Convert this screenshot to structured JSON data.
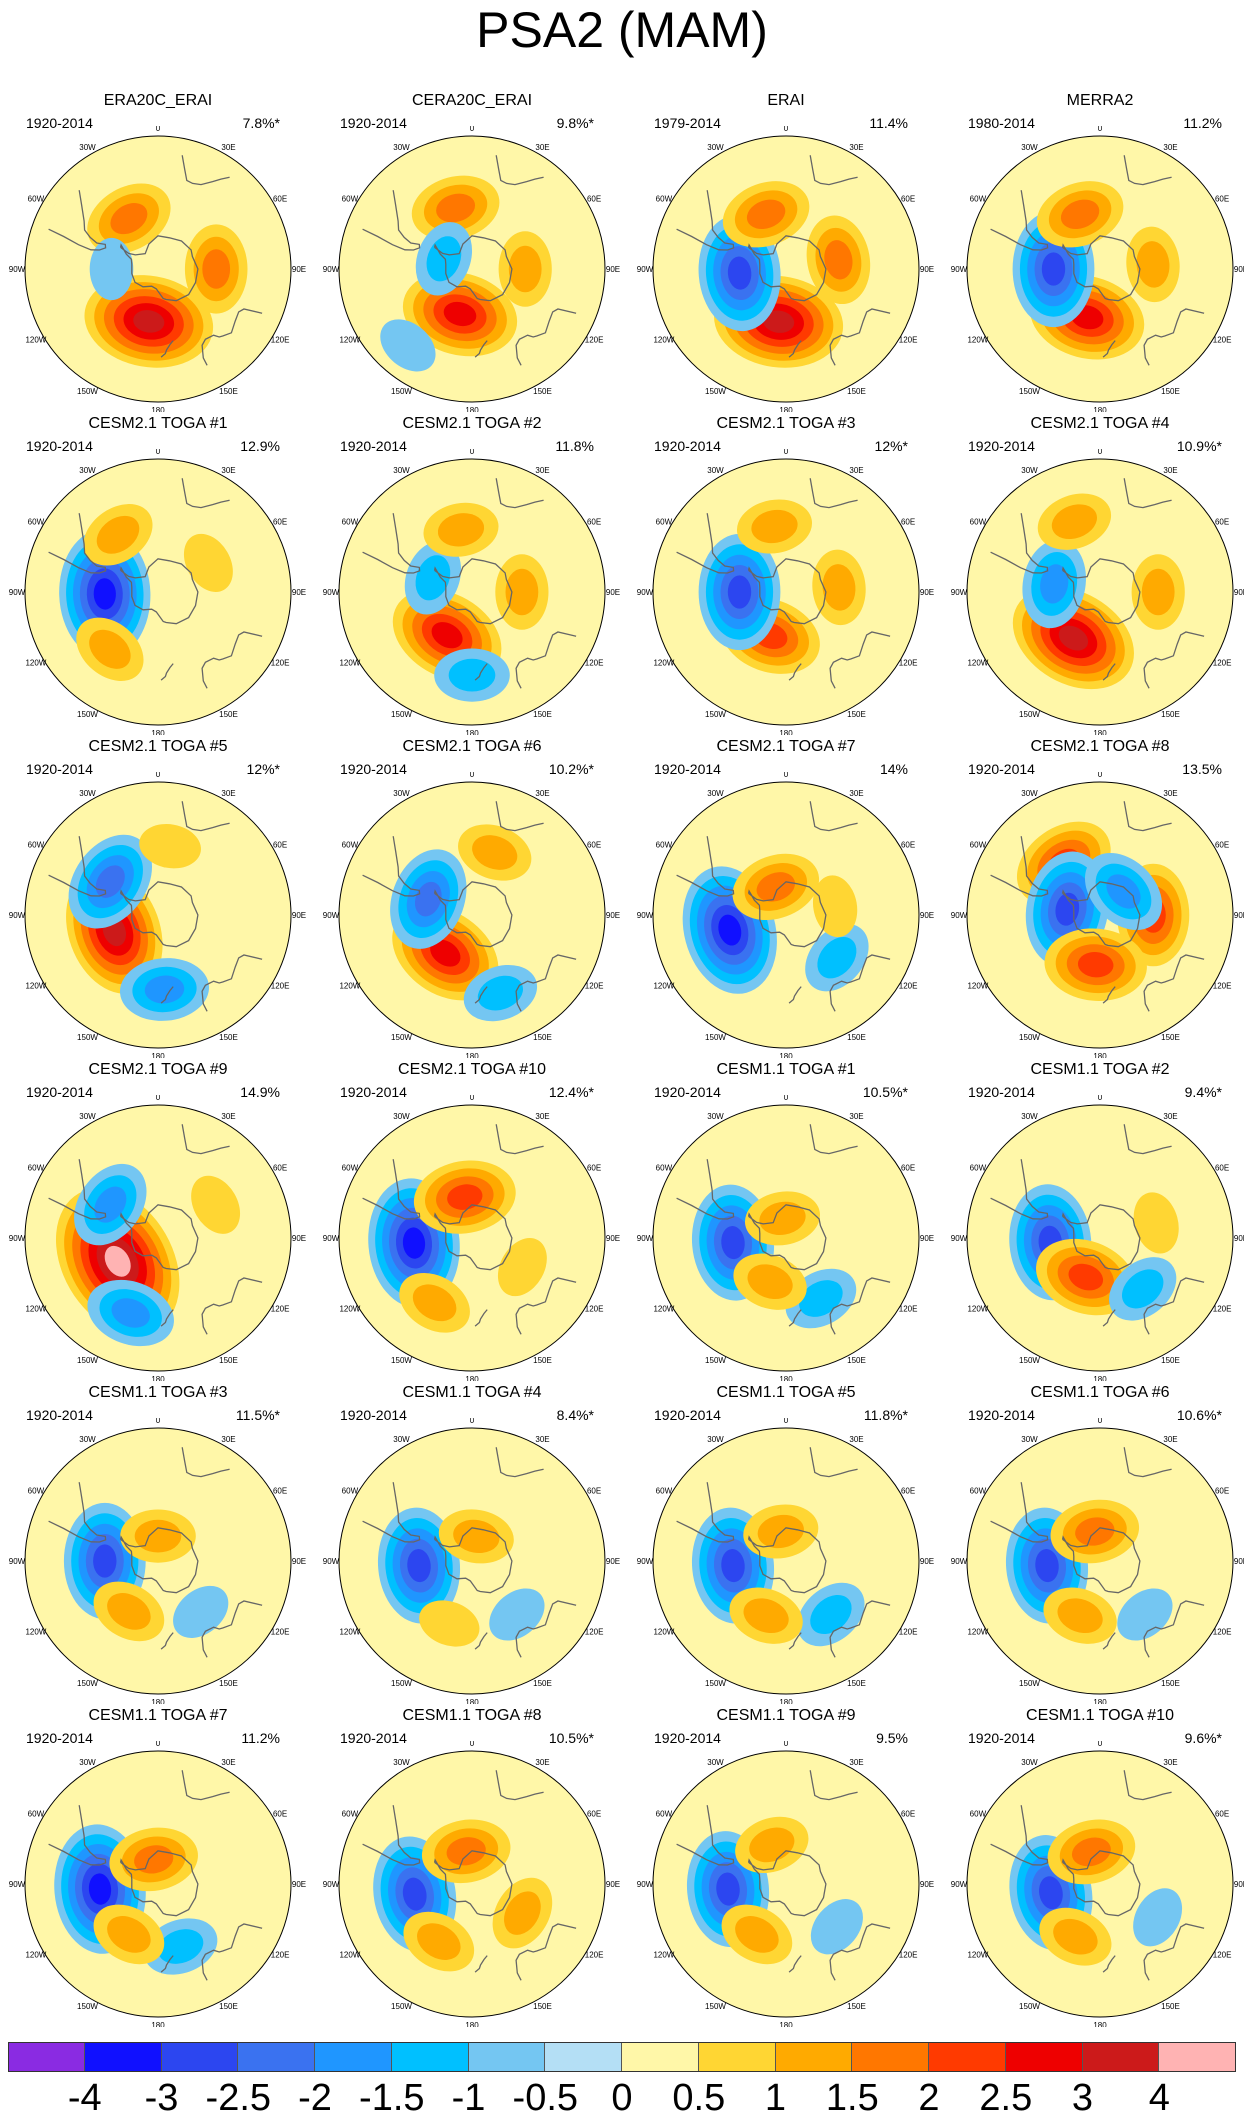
{
  "title": "PSA2 (MAM)",
  "chart_data": {
    "type": "heatmap",
    "description_kind": "polar stereographic maps (Southern Hemisphere) of regression patterns",
    "lon_labels": [
      "0",
      "30E",
      "60E",
      "90E",
      "120E",
      "150E",
      "180",
      "150W",
      "120W",
      "90W",
      "60W",
      "30W"
    ],
    "panels": [
      {
        "title": "ERA20C_ERAI",
        "period": "1920-2014",
        "variance": "7.8%*",
        "anomalies": [
          {
            "lon": -170,
            "lat": -58,
            "value": 3.0
          },
          {
            "lon": -30,
            "lat": -55,
            "value": 1.5
          },
          {
            "lon": 90,
            "lat": -55,
            "value": 1.5
          },
          {
            "lon": -90,
            "lat": -62,
            "value": -0.5
          }
        ]
      },
      {
        "title": "CERA20C_ERAI",
        "period": "1920-2014",
        "variance": "9.8%*",
        "anomalies": [
          {
            "lon": -165,
            "lat": -62,
            "value": 2.5
          },
          {
            "lon": -15,
            "lat": -52,
            "value": 1.5
          },
          {
            "lon": 90,
            "lat": -58,
            "value": 1.0
          },
          {
            "lon": -70,
            "lat": -72,
            "value": -1.0
          },
          {
            "lon": -140,
            "lat": -30,
            "value": -0.5
          }
        ]
      },
      {
        "title": "ERAI",
        "period": "1979-2014",
        "variance": "11.4%",
        "anomalies": [
          {
            "lon": -172,
            "lat": -58,
            "value": 3.0
          },
          {
            "lon": -95,
            "lat": -62,
            "value": -2.5
          },
          {
            "lon": -20,
            "lat": -55,
            "value": 1.5
          },
          {
            "lon": 80,
            "lat": -58,
            "value": 1.5
          }
        ]
      },
      {
        "title": "MERRA2",
        "period": "1980-2014",
        "variance": "11.2%",
        "anomalies": [
          {
            "lon": -165,
            "lat": -60,
            "value": 2.5
          },
          {
            "lon": -90,
            "lat": -62,
            "value": -2.5
          },
          {
            "lon": -20,
            "lat": -55,
            "value": 1.5
          },
          {
            "lon": 85,
            "lat": -58,
            "value": 1.0
          }
        ]
      },
      {
        "title": "CESM2.1 TOGA #1",
        "period": "1920-2014",
        "variance": "12.9%",
        "anomalies": [
          {
            "lon": -92,
            "lat": -58,
            "value": -3.0
          },
          {
            "lon": -140,
            "lat": -45,
            "value": 1.0
          },
          {
            "lon": -35,
            "lat": -48,
            "value": 1.0
          },
          {
            "lon": 60,
            "lat": -55,
            "value": 0.5
          }
        ]
      },
      {
        "title": "CESM2.1 TOGA #2",
        "period": "1920-2014",
        "variance": "11.8%",
        "anomalies": [
          {
            "lon": -150,
            "lat": -60,
            "value": 2.5
          },
          {
            "lon": -70,
            "lat": -65,
            "value": -1.0
          },
          {
            "lon": -10,
            "lat": -52,
            "value": 1.0
          },
          {
            "lon": 90,
            "lat": -60,
            "value": 1.0
          },
          {
            "lon": -180,
            "lat": -40,
            "value": -1.0
          }
        ]
      },
      {
        "title": "CESM2.1 TOGA #3",
        "period": "1920-2014",
        "variance": "12%*",
        "anomalies": [
          {
            "lon": -160,
            "lat": -62,
            "value": 2.0
          },
          {
            "lon": -90,
            "lat": -62,
            "value": -2.5
          },
          {
            "lon": -10,
            "lat": -50,
            "value": 1.0
          },
          {
            "lon": 85,
            "lat": -58,
            "value": 1.0
          }
        ]
      },
      {
        "title": "CESM2.1 TOGA #4",
        "period": "1920-2014",
        "variance": "10.9%*",
        "anomalies": [
          {
            "lon": -150,
            "lat": -58,
            "value": 3.0
          },
          {
            "lon": -80,
            "lat": -62,
            "value": -1.5
          },
          {
            "lon": 90,
            "lat": -55,
            "value": 1.0
          },
          {
            "lon": -20,
            "lat": -45,
            "value": 1.0
          }
        ]
      },
      {
        "title": "CESM2.1 TOGA #5",
        "period": "1920-2014",
        "variance": "12%*",
        "anomalies": [
          {
            "lon": -110,
            "lat": -62,
            "value": 3.0
          },
          {
            "lon": -55,
            "lat": -55,
            "value": -2.0
          },
          {
            "lon": 175,
            "lat": -45,
            "value": -1.5
          },
          {
            "lon": 10,
            "lat": -48,
            "value": 0.5
          }
        ]
      },
      {
        "title": "CESM2.1 TOGA #6",
        "period": "1920-2014",
        "variance": "10.2%*",
        "anomalies": [
          {
            "lon": -145,
            "lat": -62,
            "value": 2.5
          },
          {
            "lon": -70,
            "lat": -62,
            "value": -2.0
          },
          {
            "lon": 20,
            "lat": -50,
            "value": 1.0
          },
          {
            "lon": 160,
            "lat": -40,
            "value": -1.0
          }
        ]
      },
      {
        "title": "CESM2.1 TOGA #7",
        "period": "1920-2014",
        "variance": "14%",
        "anomalies": [
          {
            "lon": -105,
            "lat": -55,
            "value": -3.0
          },
          {
            "lon": -20,
            "lat": -72,
            "value": 1.5
          },
          {
            "lon": 130,
            "lat": -50,
            "value": -1.0
          },
          {
            "lon": 80,
            "lat": -60,
            "value": 0.5
          }
        ]
      },
      {
        "title": "CESM2.1 TOGA #8",
        "period": "1920-2014",
        "variance": "13.5%",
        "anomalies": [
          {
            "lon": -35,
            "lat": -52,
            "value": 2.0
          },
          {
            "lon": -80,
            "lat": -70,
            "value": -2.5
          },
          {
            "lon": 90,
            "lat": -58,
            "value": 2.0
          },
          {
            "lon": 45,
            "lat": -70,
            "value": -1.5
          },
          {
            "lon": -175,
            "lat": -60,
            "value": 2.0
          }
        ]
      },
      {
        "title": "CESM2.1 TOGA #9",
        "period": "1920-2014",
        "variance": "14.9%",
        "anomalies": [
          {
            "lon": -120,
            "lat": -62,
            "value": 4.0
          },
          {
            "lon": -55,
            "lat": -55,
            "value": -1.5
          },
          {
            "lon": -160,
            "lat": -42,
            "value": -1.5
          },
          {
            "lon": 60,
            "lat": -50,
            "value": 0.5
          }
        ]
      },
      {
        "title": "CESM2.1 TOGA #10",
        "period": "1920-2014",
        "variance": "12.4%*",
        "anomalies": [
          {
            "lon": -95,
            "lat": -55,
            "value": -3.0
          },
          {
            "lon": -10,
            "lat": -65,
            "value": 2.0
          },
          {
            "lon": 120,
            "lat": -55,
            "value": 0.5
          },
          {
            "lon": -150,
            "lat": -45,
            "value": 1.0
          }
        ]
      },
      {
        "title": "CESM1.1 TOGA #1",
        "period": "1920-2014",
        "variance": "10.5%*",
        "anomalies": [
          {
            "lon": -95,
            "lat": -58,
            "value": -2.5
          },
          {
            "lon": -10,
            "lat": -78,
            "value": 1.0
          },
          {
            "lon": 150,
            "lat": -48,
            "value": -1.0
          },
          {
            "lon": -160,
            "lat": -62,
            "value": 1.0
          }
        ]
      },
      {
        "title": "CESM1.1 TOGA #2",
        "period": "1920-2014",
        "variance": "9.4%*",
        "anomalies": [
          {
            "lon": -95,
            "lat": -60,
            "value": -2.5
          },
          {
            "lon": -160,
            "lat": -65,
            "value": 2.0
          },
          {
            "lon": 140,
            "lat": -50,
            "value": -1.0
          },
          {
            "lon": 75,
            "lat": -55,
            "value": 0.5
          }
        ]
      },
      {
        "title": "CESM1.1 TOGA #3",
        "period": "1920-2014",
        "variance": "11.5%*",
        "anomalies": [
          {
            "lon": -90,
            "lat": -58,
            "value": -2.5
          },
          {
            "lon": -150,
            "lat": -55,
            "value": 1.0
          },
          {
            "lon": 0,
            "lat": -75,
            "value": 1.0
          },
          {
            "lon": 140,
            "lat": -50,
            "value": -0.5
          }
        ]
      },
      {
        "title": "CESM1.1 TOGA #4",
        "period": "1920-2014",
        "variance": "8.4%*",
        "anomalies": [
          {
            "lon": -95,
            "lat": -58,
            "value": -2.5
          },
          {
            "lon": 10,
            "lat": -75,
            "value": 1.0
          },
          {
            "lon": -160,
            "lat": -50,
            "value": 0.5
          },
          {
            "lon": 140,
            "lat": -48,
            "value": -0.5
          }
        ]
      },
      {
        "title": "CESM1.1 TOGA #5",
        "period": "1920-2014",
        "variance": "11.8%*",
        "anomalies": [
          {
            "lon": -95,
            "lat": -58,
            "value": -2.5
          },
          {
            "lon": -10,
            "lat": -72,
            "value": 1.0
          },
          {
            "lon": 140,
            "lat": -48,
            "value": -1.0
          },
          {
            "lon": -160,
            "lat": -55,
            "value": 1.0
          }
        ]
      },
      {
        "title": "CESM1.1 TOGA #6",
        "period": "1920-2014",
        "variance": "10.6%*",
        "anomalies": [
          {
            "lon": -95,
            "lat": -58,
            "value": -2.5
          },
          {
            "lon": -10,
            "lat": -72,
            "value": 1.5
          },
          {
            "lon": 140,
            "lat": -48,
            "value": -0.5
          },
          {
            "lon": -160,
            "lat": -55,
            "value": 1.0
          }
        ]
      },
      {
        "title": "CESM1.1 TOGA #7",
        "period": "1920-2014",
        "variance": "11.2%",
        "anomalies": [
          {
            "lon": -95,
            "lat": -55,
            "value": -3.0
          },
          {
            "lon": -10,
            "lat": -75,
            "value": 1.5
          },
          {
            "lon": 160,
            "lat": -50,
            "value": -1.0
          },
          {
            "lon": -150,
            "lat": -55,
            "value": 1.0
          }
        ]
      },
      {
        "title": "CESM1.1 TOGA #8",
        "period": "1920-2014",
        "variance": "10.5%*",
        "anomalies": [
          {
            "lon": -100,
            "lat": -55,
            "value": -2.5
          },
          {
            "lon": -10,
            "lat": -70,
            "value": 1.5
          },
          {
            "lon": -150,
            "lat": -50,
            "value": 1.0
          },
          {
            "lon": 120,
            "lat": -55,
            "value": 1.0
          }
        ]
      },
      {
        "title": "CESM1.1 TOGA #9",
        "period": "1920-2014",
        "variance": "9.5%",
        "anomalies": [
          {
            "lon": -95,
            "lat": -55,
            "value": -2.5
          },
          {
            "lon": -20,
            "lat": -65,
            "value": 1.0
          },
          {
            "lon": -150,
            "lat": -55,
            "value": 1.0
          },
          {
            "lon": 130,
            "lat": -50,
            "value": -0.5
          }
        ]
      },
      {
        "title": "CESM1.1 TOGA #10",
        "period": "1920-2014",
        "variance": "9.6%*",
        "anomalies": [
          {
            "lon": -100,
            "lat": -60,
            "value": -2.5
          },
          {
            "lon": -15,
            "lat": -70,
            "value": 1.5
          },
          {
            "lon": -155,
            "lat": -55,
            "value": 1.0
          },
          {
            "lon": 120,
            "lat": -50,
            "value": -0.5
          }
        ]
      }
    ],
    "colorbar": {
      "ticks": [
        "-4",
        "-3",
        "-2.5",
        "-2",
        "-1.5",
        "-1",
        "-0.5",
        "0",
        "0.5",
        "1",
        "1.5",
        "2",
        "2.5",
        "3",
        "4"
      ],
      "levels": [
        -4,
        -3,
        -2.5,
        -2,
        -1.5,
        -1,
        -0.5,
        0,
        0.5,
        1,
        1.5,
        2,
        2.5,
        3,
        4
      ],
      "colors": [
        "#8a2be2",
        "#1010ff",
        "#2c46f0",
        "#3a72f0",
        "#1f96ff",
        "#00c0ff",
        "#74c6f2",
        "#b4dff5",
        "#fff7a8",
        "#ffd633",
        "#ffaa00",
        "#ff7700",
        "#ff3a00",
        "#ee0000",
        "#cc1a1a",
        "#ffb3b3"
      ]
    }
  }
}
